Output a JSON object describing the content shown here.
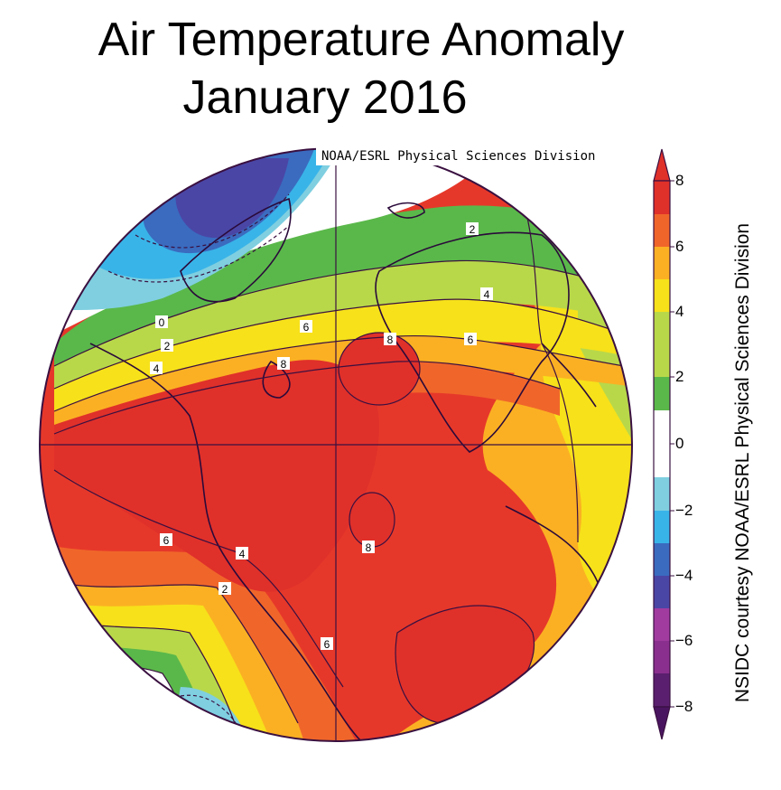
{
  "title": {
    "line1": "Air Temperature Anomaly",
    "line2": "January 2016"
  },
  "credit_box": "NOAA/ESRL Physical Sciences Division",
  "side_credit": "NSIDC courtesy NOAA/ESRL Physical Sciences Division",
  "colorbar": {
    "ticks": [
      "8",
      "6",
      "4",
      "2",
      "0",
      "−2",
      "−4",
      "−6",
      "−8"
    ],
    "colors": {
      "8": "#e0302a",
      "6": "#f0662a",
      "4": "#fbb023",
      "2": "#f7e11a",
      "0a": "#b8d84a",
      "0b": "#5ab84a",
      "0c": "#ffffff",
      "m2a": "#7fcfe0",
      "m2b": "#39b4e8",
      "m4a": "#3a6bbf",
      "m4b": "#4a46a6",
      "m6": "#a13ba0",
      "m8": "#5a1f6e"
    }
  },
  "contour_labels": [
    "2",
    "4",
    "6",
    "8",
    "0",
    "2",
    "4",
    "8",
    "6",
    "8",
    "6",
    "4",
    "2",
    "6"
  ]
}
